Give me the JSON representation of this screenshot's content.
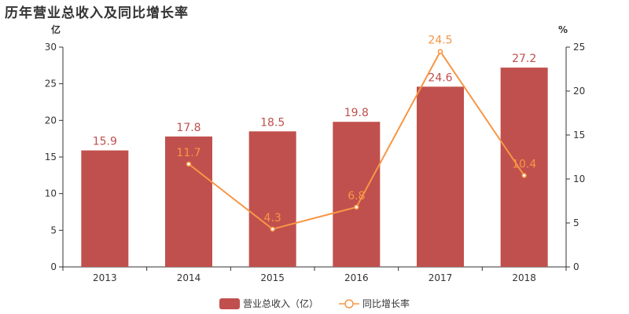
{
  "title": "历年营业总收入及同比增长率",
  "chart_data": {
    "type": "bar",
    "categories": [
      "2013",
      "2014",
      "2015",
      "2016",
      "2017",
      "2018"
    ],
    "series": [
      {
        "name": "营业总收入（亿）",
        "type": "bar",
        "axis": "left",
        "values": [
          15.9,
          17.8,
          18.5,
          19.8,
          24.6,
          27.2
        ],
        "labels": [
          "15.9",
          "17.8",
          "18.5",
          "19.8",
          "24.6",
          "27.2"
        ],
        "color": "#c0504d"
      },
      {
        "name": "同比增长率",
        "type": "line",
        "axis": "right",
        "values": [
          null,
          11.7,
          4.3,
          6.8,
          24.5,
          10.4
        ],
        "labels": [
          "",
          "11.7",
          "4.3",
          "6.8",
          "24.5",
          "10.4"
        ],
        "color": "#f79646"
      }
    ],
    "y_left": {
      "unit": "亿",
      "ylim": [
        0,
        30
      ],
      "ticks": [
        "0",
        "5",
        "10",
        "15",
        "20",
        "25",
        "30"
      ]
    },
    "y_right": {
      "unit": "%",
      "ylim": [
        0,
        25
      ],
      "ticks": [
        "0",
        "5",
        "10",
        "15",
        "20",
        "25"
      ]
    },
    "grid": false,
    "legend_position": "bottom"
  }
}
